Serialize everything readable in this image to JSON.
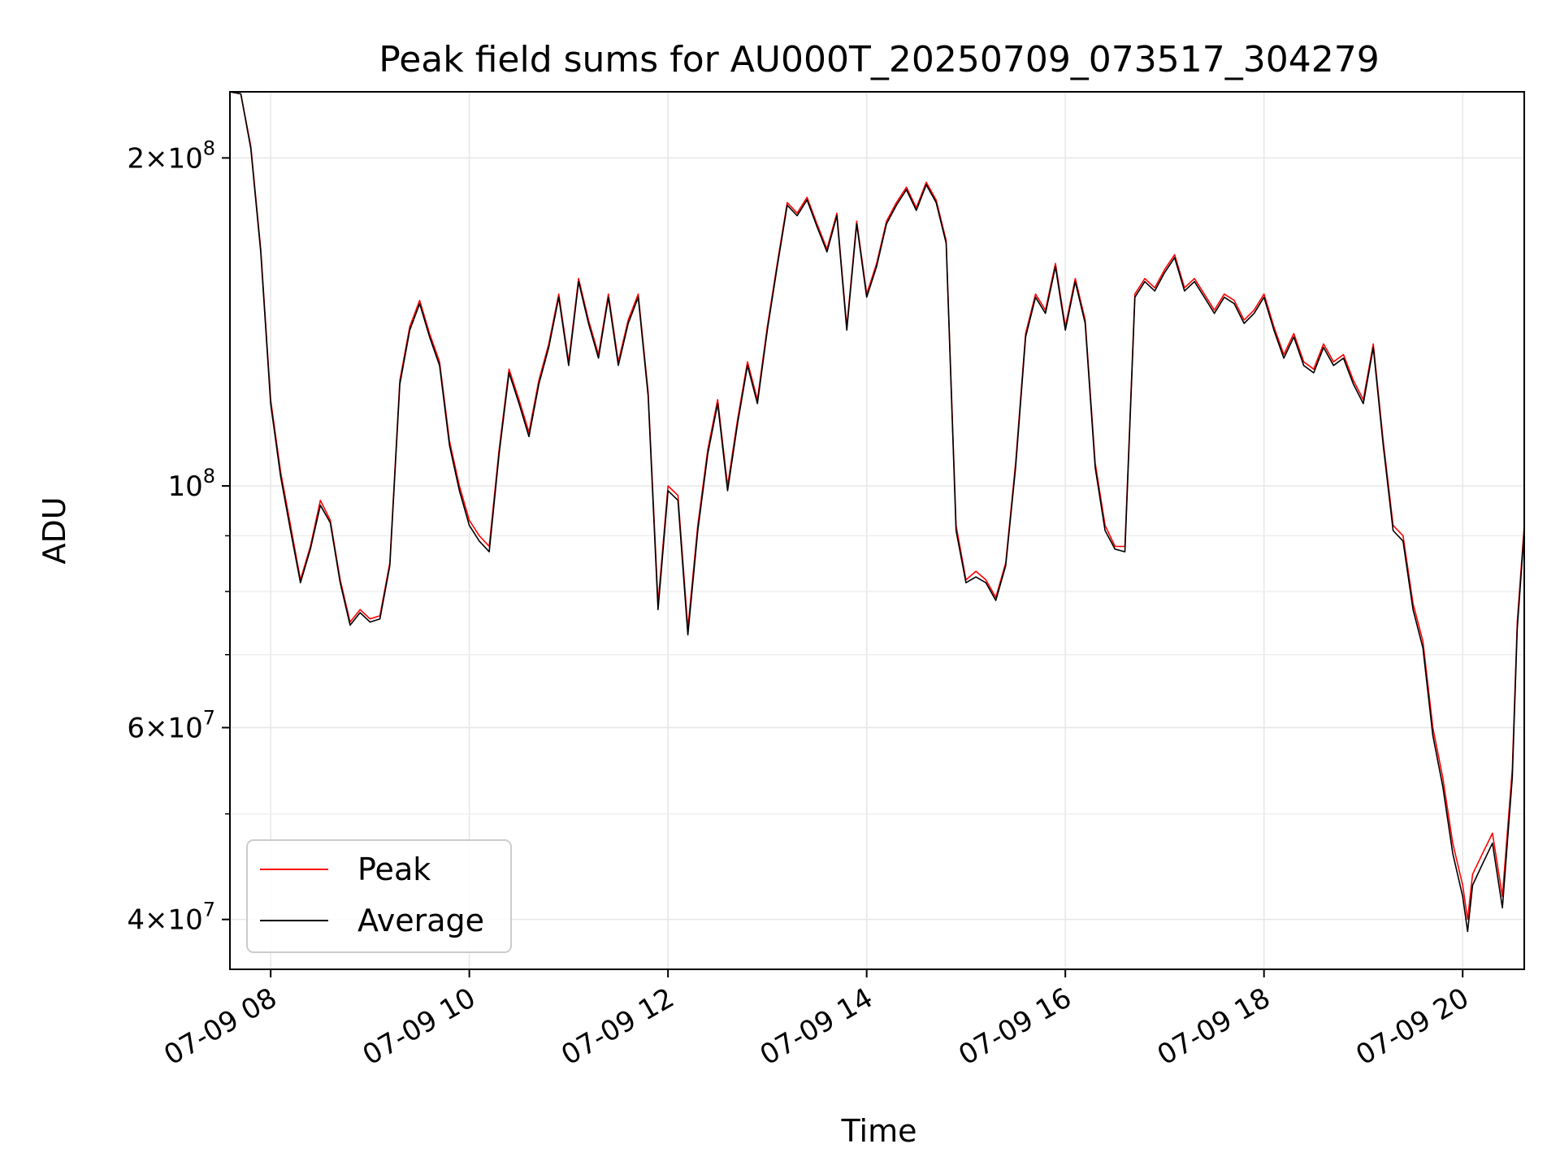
{
  "chart_data": {
    "type": "line",
    "title": "Peak field sums for AU000T_20250709_073517_304279",
    "xlabel": "Time",
    "ylabel": "ADU",
    "x_unit": "hour of day on 07-09",
    "xlim": [
      7.59,
      20.62
    ],
    "ylim": [
      36000000,
      230000000
    ],
    "yscale": "log",
    "grid": true,
    "legend_position": "lower-left",
    "x_ticks": [
      {
        "value": 8,
        "label": "07-09 08"
      },
      {
        "value": 10,
        "label": "07-09 10"
      },
      {
        "value": 12,
        "label": "07-09 12"
      },
      {
        "value": 14,
        "label": "07-09 14"
      },
      {
        "value": 16,
        "label": "07-09 16"
      },
      {
        "value": 18,
        "label": "07-09 18"
      },
      {
        "value": 20,
        "label": "07-09 20"
      }
    ],
    "y_ticks": [
      {
        "value": 40000000,
        "mantissa": "4",
        "exponent": "7"
      },
      {
        "value": 60000000,
        "mantissa": "6",
        "exponent": "7"
      },
      {
        "value": 100000000,
        "mantissa": "",
        "exponent": "8"
      },
      {
        "value": 200000000,
        "mantissa": "2",
        "exponent": "8"
      }
    ],
    "y_minor_ticks": [
      50000000,
      70000000,
      80000000,
      90000000
    ],
    "series": [
      {
        "name": "Peak",
        "color": "#ff0000",
        "points": [
          [
            7.59,
            230000000
          ],
          [
            7.7,
            229000000
          ],
          [
            7.8,
            205000000
          ],
          [
            7.9,
            165000000
          ],
          [
            8.0,
            120000000
          ],
          [
            8.1,
            103000000
          ],
          [
            8.2,
            92000000
          ],
          [
            8.3,
            82000000
          ],
          [
            8.4,
            88000000
          ],
          [
            8.5,
            97000000
          ],
          [
            8.6,
            93000000
          ],
          [
            8.7,
            82000000
          ],
          [
            8.8,
            75000000
          ],
          [
            8.9,
            77000000
          ],
          [
            9.0,
            75500000
          ],
          [
            9.1,
            76000000
          ],
          [
            9.2,
            85000000
          ],
          [
            9.3,
            125000000
          ],
          [
            9.4,
            140000000
          ],
          [
            9.5,
            148000000
          ],
          [
            9.6,
            138000000
          ],
          [
            9.7,
            130000000
          ],
          [
            9.8,
            110000000
          ],
          [
            9.9,
            100000000
          ],
          [
            10.0,
            93000000
          ],
          [
            10.1,
            90000000
          ],
          [
            10.2,
            88000000
          ],
          [
            10.3,
            108000000
          ],
          [
            10.4,
            128000000
          ],
          [
            10.5,
            120000000
          ],
          [
            10.6,
            112000000
          ],
          [
            10.7,
            125000000
          ],
          [
            10.8,
            135000000
          ],
          [
            10.9,
            150000000
          ],
          [
            11.0,
            130000000
          ],
          [
            11.1,
            155000000
          ],
          [
            11.2,
            142000000
          ],
          [
            11.3,
            132000000
          ],
          [
            11.4,
            150000000
          ],
          [
            11.5,
            130000000
          ],
          [
            11.6,
            142000000
          ],
          [
            11.7,
            150000000
          ],
          [
            11.8,
            122000000
          ],
          [
            11.9,
            78000000
          ],
          [
            12.0,
            100000000
          ],
          [
            12.1,
            98000000
          ],
          [
            12.2,
            74000000
          ],
          [
            12.3,
            92000000
          ],
          [
            12.4,
            108000000
          ],
          [
            12.5,
            120000000
          ],
          [
            12.6,
            100000000
          ],
          [
            12.7,
            115000000
          ],
          [
            12.8,
            130000000
          ],
          [
            12.9,
            120000000
          ],
          [
            13.0,
            140000000
          ],
          [
            13.1,
            160000000
          ],
          [
            13.2,
            182000000
          ],
          [
            13.3,
            178000000
          ],
          [
            13.4,
            184000000
          ],
          [
            13.5,
            174000000
          ],
          [
            13.6,
            165000000
          ],
          [
            13.7,
            178000000
          ],
          [
            13.8,
            140000000
          ],
          [
            13.9,
            175000000
          ],
          [
            14.0,
            150000000
          ],
          [
            14.1,
            160000000
          ],
          [
            14.2,
            175000000
          ],
          [
            14.3,
            182000000
          ],
          [
            14.4,
            188000000
          ],
          [
            14.5,
            180000000
          ],
          [
            14.6,
            190000000
          ],
          [
            14.7,
            183000000
          ],
          [
            14.8,
            168000000
          ],
          [
            14.9,
            92000000
          ],
          [
            15.0,
            82000000
          ],
          [
            15.1,
            83500000
          ],
          [
            15.2,
            82000000
          ],
          [
            15.3,
            79000000
          ],
          [
            15.4,
            85000000
          ],
          [
            15.5,
            105000000
          ],
          [
            15.6,
            138000000
          ],
          [
            15.7,
            150000000
          ],
          [
            15.8,
            145000000
          ],
          [
            15.9,
            160000000
          ],
          [
            16.0,
            140000000
          ],
          [
            16.1,
            155000000
          ],
          [
            16.2,
            142000000
          ],
          [
            16.3,
            105000000
          ],
          [
            16.4,
            92000000
          ],
          [
            16.5,
            88000000
          ],
          [
            16.6,
            88000000
          ],
          [
            16.7,
            150000000
          ],
          [
            16.8,
            155000000
          ],
          [
            16.9,
            152000000
          ],
          [
            17.0,
            158000000
          ],
          [
            17.1,
            163000000
          ],
          [
            17.2,
            152000000
          ],
          [
            17.3,
            155000000
          ],
          [
            17.4,
            150000000
          ],
          [
            17.5,
            145000000
          ],
          [
            17.6,
            150000000
          ],
          [
            17.7,
            148000000
          ],
          [
            17.8,
            142000000
          ],
          [
            17.9,
            145000000
          ],
          [
            18.0,
            150000000
          ],
          [
            18.1,
            140000000
          ],
          [
            18.2,
            132000000
          ],
          [
            18.3,
            138000000
          ],
          [
            18.4,
            130000000
          ],
          [
            18.5,
            128000000
          ],
          [
            18.6,
            135000000
          ],
          [
            18.7,
            130000000
          ],
          [
            18.8,
            132000000
          ],
          [
            18.9,
            125000000
          ],
          [
            19.0,
            120000000
          ],
          [
            19.1,
            135000000
          ],
          [
            19.2,
            110000000
          ],
          [
            19.3,
            92000000
          ],
          [
            19.4,
            90000000
          ],
          [
            19.5,
            78000000
          ],
          [
            19.6,
            72000000
          ],
          [
            19.7,
            60000000
          ],
          [
            19.8,
            54000000
          ],
          [
            19.9,
            47000000
          ],
          [
            20.0,
            43000000
          ],
          [
            20.05,
            40000000
          ],
          [
            20.1,
            44000000
          ],
          [
            20.2,
            46000000
          ],
          [
            20.3,
            48000000
          ],
          [
            20.4,
            42000000
          ],
          [
            20.5,
            55000000
          ],
          [
            20.55,
            75000000
          ],
          [
            20.62,
            92000000
          ]
        ]
      },
      {
        "name": "Average",
        "color": "#000000",
        "points": [
          [
            7.59,
            230000000
          ],
          [
            7.7,
            229000000
          ],
          [
            7.8,
            204000000
          ],
          [
            7.9,
            164000000
          ],
          [
            8.0,
            119000000
          ],
          [
            8.1,
            102000000
          ],
          [
            8.2,
            91000000
          ],
          [
            8.3,
            81500000
          ],
          [
            8.4,
            87500000
          ],
          [
            8.5,
            96000000
          ],
          [
            8.6,
            92500000
          ],
          [
            8.7,
            81500000
          ],
          [
            8.8,
            74500000
          ],
          [
            8.9,
            76500000
          ],
          [
            9.0,
            75000000
          ],
          [
            9.1,
            75500000
          ],
          [
            9.2,
            84500000
          ],
          [
            9.3,
            124000000
          ],
          [
            9.4,
            139000000
          ],
          [
            9.5,
            147000000
          ],
          [
            9.6,
            137000000
          ],
          [
            9.7,
            129000000
          ],
          [
            9.8,
            109000000
          ],
          [
            9.9,
            99000000
          ],
          [
            10.0,
            92000000
          ],
          [
            10.1,
            89000000
          ],
          [
            10.2,
            87000000
          ],
          [
            10.3,
            107000000
          ],
          [
            10.4,
            127000000
          ],
          [
            10.5,
            119000000
          ],
          [
            10.6,
            111000000
          ],
          [
            10.7,
            124000000
          ],
          [
            10.8,
            134000000
          ],
          [
            10.9,
            149000000
          ],
          [
            11.0,
            129000000
          ],
          [
            11.1,
            154000000
          ],
          [
            11.2,
            141000000
          ],
          [
            11.3,
            131000000
          ],
          [
            11.4,
            149000000
          ],
          [
            11.5,
            129000000
          ],
          [
            11.6,
            141000000
          ],
          [
            11.7,
            149000000
          ],
          [
            11.8,
            121000000
          ],
          [
            11.9,
            77000000
          ],
          [
            12.0,
            99000000
          ],
          [
            12.1,
            97000000
          ],
          [
            12.2,
            73000000
          ],
          [
            12.3,
            91000000
          ],
          [
            12.4,
            107000000
          ],
          [
            12.5,
            119000000
          ],
          [
            12.6,
            99000000
          ],
          [
            12.7,
            114000000
          ],
          [
            12.8,
            129000000
          ],
          [
            12.9,
            119000000
          ],
          [
            13.0,
            139000000
          ],
          [
            13.1,
            159000000
          ],
          [
            13.2,
            181000000
          ],
          [
            13.3,
            177000000
          ],
          [
            13.4,
            183000000
          ],
          [
            13.5,
            173000000
          ],
          [
            13.6,
            164000000
          ],
          [
            13.7,
            177000000
          ],
          [
            13.8,
            139000000
          ],
          [
            13.9,
            174000000
          ],
          [
            14.0,
            149000000
          ],
          [
            14.1,
            159000000
          ],
          [
            14.2,
            174000000
          ],
          [
            14.3,
            181000000
          ],
          [
            14.4,
            187000000
          ],
          [
            14.5,
            179000000
          ],
          [
            14.6,
            189000000
          ],
          [
            14.7,
            182000000
          ],
          [
            14.8,
            167000000
          ],
          [
            14.9,
            91000000
          ],
          [
            15.0,
            81500000
          ],
          [
            15.1,
            82500000
          ],
          [
            15.2,
            81500000
          ],
          [
            15.3,
            78500000
          ],
          [
            15.4,
            84500000
          ],
          [
            15.5,
            104000000
          ],
          [
            15.6,
            137000000
          ],
          [
            15.7,
            149000000
          ],
          [
            15.8,
            144000000
          ],
          [
            15.9,
            159000000
          ],
          [
            16.0,
            139000000
          ],
          [
            16.1,
            154000000
          ],
          [
            16.2,
            141000000
          ],
          [
            16.3,
            104000000
          ],
          [
            16.4,
            91000000
          ],
          [
            16.5,
            87500000
          ],
          [
            16.6,
            87000000
          ],
          [
            16.7,
            149000000
          ],
          [
            16.8,
            154000000
          ],
          [
            16.9,
            151000000
          ],
          [
            17.0,
            157000000
          ],
          [
            17.1,
            162000000
          ],
          [
            17.2,
            151000000
          ],
          [
            17.3,
            154000000
          ],
          [
            17.4,
            149000000
          ],
          [
            17.5,
            144000000
          ],
          [
            17.6,
            149000000
          ],
          [
            17.7,
            147000000
          ],
          [
            17.8,
            141000000
          ],
          [
            17.9,
            144000000
          ],
          [
            18.0,
            149000000
          ],
          [
            18.1,
            139000000
          ],
          [
            18.2,
            131000000
          ],
          [
            18.3,
            137000000
          ],
          [
            18.4,
            129000000
          ],
          [
            18.5,
            127000000
          ],
          [
            18.6,
            134000000
          ],
          [
            18.7,
            129000000
          ],
          [
            18.8,
            131000000
          ],
          [
            18.9,
            124000000
          ],
          [
            19.0,
            119000000
          ],
          [
            19.1,
            134000000
          ],
          [
            19.2,
            109000000
          ],
          [
            19.3,
            91000000
          ],
          [
            19.4,
            89000000
          ],
          [
            19.5,
            77000000
          ],
          [
            19.6,
            71000000
          ],
          [
            19.7,
            59000000
          ],
          [
            19.8,
            53000000
          ],
          [
            19.9,
            46000000
          ],
          [
            20.0,
            42000000
          ],
          [
            20.05,
            39000000
          ],
          [
            20.1,
            43000000
          ],
          [
            20.2,
            45000000
          ],
          [
            20.3,
            47000000
          ],
          [
            20.4,
            41000000
          ],
          [
            20.5,
            54000000
          ],
          [
            20.55,
            74000000
          ],
          [
            20.62,
            91000000
          ]
        ]
      }
    ]
  }
}
